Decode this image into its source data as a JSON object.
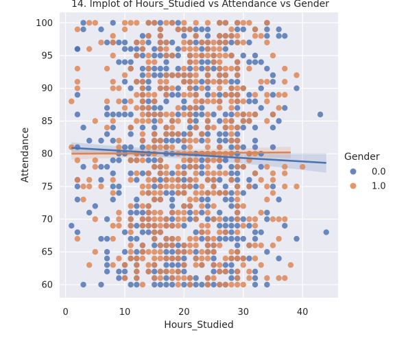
{
  "chart_data": {
    "type": "scatter",
    "title": "14. lmplot of Hours_Studied vs Attendance vs Gender",
    "xlabel": "Hours_Studied",
    "ylabel": "Attendance",
    "xlim": [
      -1,
      46
    ],
    "ylim": [
      58,
      101.6
    ],
    "xticks": [
      0,
      10,
      20,
      30,
      40
    ],
    "yticks": [
      60,
      65,
      70,
      75,
      80,
      85,
      90,
      95,
      100
    ],
    "grid": true,
    "legend": {
      "title": "Gender",
      "placement": "right"
    },
    "series": [
      {
        "name": "0.0",
        "color": "#4c72b0",
        "regression": {
          "x": [
            1,
            44
          ],
          "y": [
            80.9,
            78.6
          ]
        },
        "outliers": [
          [
            43,
            86
          ],
          [
            44,
            68
          ],
          [
            1,
            69
          ],
          [
            3,
            60
          ],
          [
            2,
            96
          ],
          [
            3,
            99
          ],
          [
            39,
            67
          ],
          [
            39,
            90
          ],
          [
            37,
            69
          ]
        ]
      },
      {
        "name": "1.0",
        "color": "#dd8452",
        "regression": {
          "x": [
            1,
            38
          ],
          "y": [
            80.0,
            80.2
          ]
        },
        "outliers": [
          [
            1,
            88
          ],
          [
            1,
            81
          ],
          [
            2,
            67
          ],
          [
            2,
            99
          ],
          [
            39,
            75
          ],
          [
            39,
            92
          ],
          [
            38,
            63
          ],
          [
            40,
            78
          ]
        ]
      }
    ]
  }
}
